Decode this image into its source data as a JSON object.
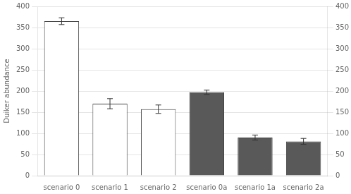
{
  "chart_data": {
    "type": "bar",
    "categories": [
      "scenario 0",
      "scenario 1",
      "scenario 2",
      "scenario 0a",
      "scenario 1a",
      "scenario 2a"
    ],
    "values": [
      365,
      170,
      157,
      197,
      90,
      81
    ],
    "errors": [
      8,
      12,
      10,
      5,
      6,
      7
    ],
    "colors": [
      "#ffffff",
      "#ffffff",
      "#ffffff",
      "#595959",
      "#595959",
      "#595959"
    ],
    "ylabel": "Duiker abundance",
    "ylim": [
      0,
      400
    ],
    "yticks": [
      0,
      50,
      100,
      150,
      200,
      250,
      300,
      350,
      400
    ],
    "y2lim": [
      0,
      400
    ],
    "y2ticks": [
      0,
      50,
      100,
      150,
      200,
      250,
      300,
      350,
      400
    ],
    "grid": true
  }
}
